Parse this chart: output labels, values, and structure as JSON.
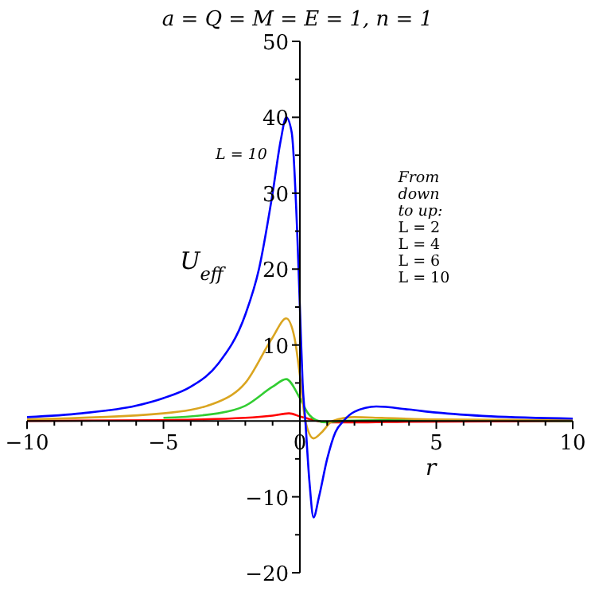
{
  "chart_data": {
    "type": "line",
    "title": "a = Q = M = E = 1, n = 1",
    "xlabel": "r",
    "ylabel": "U$_{eff}$",
    "annotations": [
      "L = 10",
      "From\ndown\nto up:\nL = 2\nL = 4\nL = 6\nL = 10"
    ],
    "xlim": [
      -10,
      10
    ],
    "ylim": [
      -20,
      50
    ],
    "xticks": [
      -10,
      {
        "value": -9,
        "label": null
      },
      {
        "value": -8,
        "label": null
      },
      {
        "value": -7,
        "label": null
      },
      {
        "value": -6,
        "label": null
      },
      -5,
      {
        "value": -4,
        "label": null
      },
      {
        "value": -3,
        "label": null
      },
      {
        "value": -2,
        "label": null
      },
      {
        "value": -1,
        "label": null
      },
      0,
      {
        "value": 1,
        "label": null
      },
      {
        "value": 2,
        "label": null
      },
      {
        "value": 3,
        "label": null
      },
      {
        "value": 4,
        "label": null
      },
      5,
      {
        "value": 6,
        "label": null
      },
      {
        "value": 7,
        "label": null
      },
      {
        "value": 8,
        "label": null
      },
      {
        "value": 9,
        "label": null
      },
      10
    ],
    "yticks": [
      -20,
      {
        "value": -15,
        "label": null
      },
      -10,
      {
        "value": -5,
        "label": null
      },
      {
        "value": 5,
        "label": null
      },
      10,
      {
        "value": 15,
        "label": null
      },
      20,
      {
        "value": 25,
        "label": null
      },
      30,
      {
        "value": 35,
        "label": null
      },
      40,
      {
        "value": 45,
        "label": null
      },
      50
    ],
    "grid": false,
    "marker": "none",
    "line_style": "solid",
    "series": [
      {
        "color": "#ff0000",
        "x": [
          -10,
          -5,
          -2,
          -1,
          -0.4,
          0,
          0.5,
          1,
          2,
          4,
          10
        ],
        "values": [
          0,
          0.1,
          0.4,
          0.7,
          1,
          0.6,
          0.1,
          -0.2,
          -0.2,
          -0.1,
          0
        ]
      },
      {
        "color": "#32cd32",
        "x": [
          -5,
          -3,
          -2,
          -1,
          -0.5,
          0,
          0.3,
          0.6,
          1,
          1.5,
          3,
          10
        ],
        "values": [
          0.4,
          1,
          2,
          4.5,
          5.5,
          3,
          1,
          0.1,
          -0.2,
          0,
          0.1,
          0
        ]
      },
      {
        "color": "#daa520",
        "x": [
          -10,
          -5,
          -3,
          -2,
          -1,
          -0.5,
          -0.2,
          0,
          0.2,
          0.5,
          0.8,
          1.2,
          2,
          3,
          5,
          10
        ],
        "values": [
          0.2,
          1,
          2.5,
          5,
          11,
          13.5,
          11,
          6,
          0,
          -2.3,
          -1.5,
          0,
          0.5,
          0.4,
          0.2,
          0.1
        ]
      },
      {
        "color": "#0000ff",
        "x": [
          -10,
          -8,
          -6,
          -5,
          -4,
          -3,
          -2,
          -1.5,
          -1,
          -0.7,
          -0.5,
          -0.3,
          -0.1,
          0,
          0.1,
          0.2,
          0.35,
          0.5,
          0.7,
          1,
          1.3,
          1.6,
          2,
          2.8,
          4,
          5,
          7,
          10
        ],
        "values": [
          0.5,
          1,
          2,
          3,
          4.5,
          7.5,
          14,
          20,
          30,
          37,
          40,
          38,
          25,
          15,
          5,
          0,
          -8,
          -12.7,
          -10,
          -5,
          -1.5,
          0,
          1.2,
          1.9,
          1.5,
          1.1,
          0.6,
          0.3
        ]
      }
    ]
  }
}
